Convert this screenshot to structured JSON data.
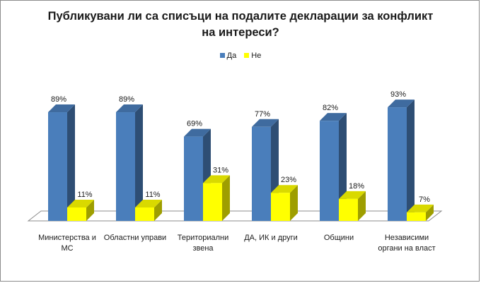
{
  "chart_data": {
    "type": "bar",
    "title_lines": [
      "Публикувани ли са списъци на подалите декларации за конфликт",
      "на интереси?"
    ],
    "categories": [
      "Министерства и МС",
      "Областни управи",
      "Териториални звена",
      "ДА, ИК и други",
      "Общини",
      "Независими органи на власт"
    ],
    "series": [
      {
        "name": "Да",
        "values": [
          89,
          89,
          69,
          77,
          82,
          93
        ],
        "labels": [
          "89%",
          "89%",
          "69%",
          "77%",
          "82%",
          "93%"
        ],
        "color": "#4a7ebb"
      },
      {
        "name": "Не",
        "values": [
          11,
          11,
          31,
          23,
          18,
          7
        ],
        "labels": [
          "11%",
          "11%",
          "31%",
          "23%",
          "18%",
          "7%"
        ],
        "color": "#ffff00"
      }
    ],
    "ylim": [
      0,
      100
    ],
    "legend_position": "top",
    "grid": false
  }
}
